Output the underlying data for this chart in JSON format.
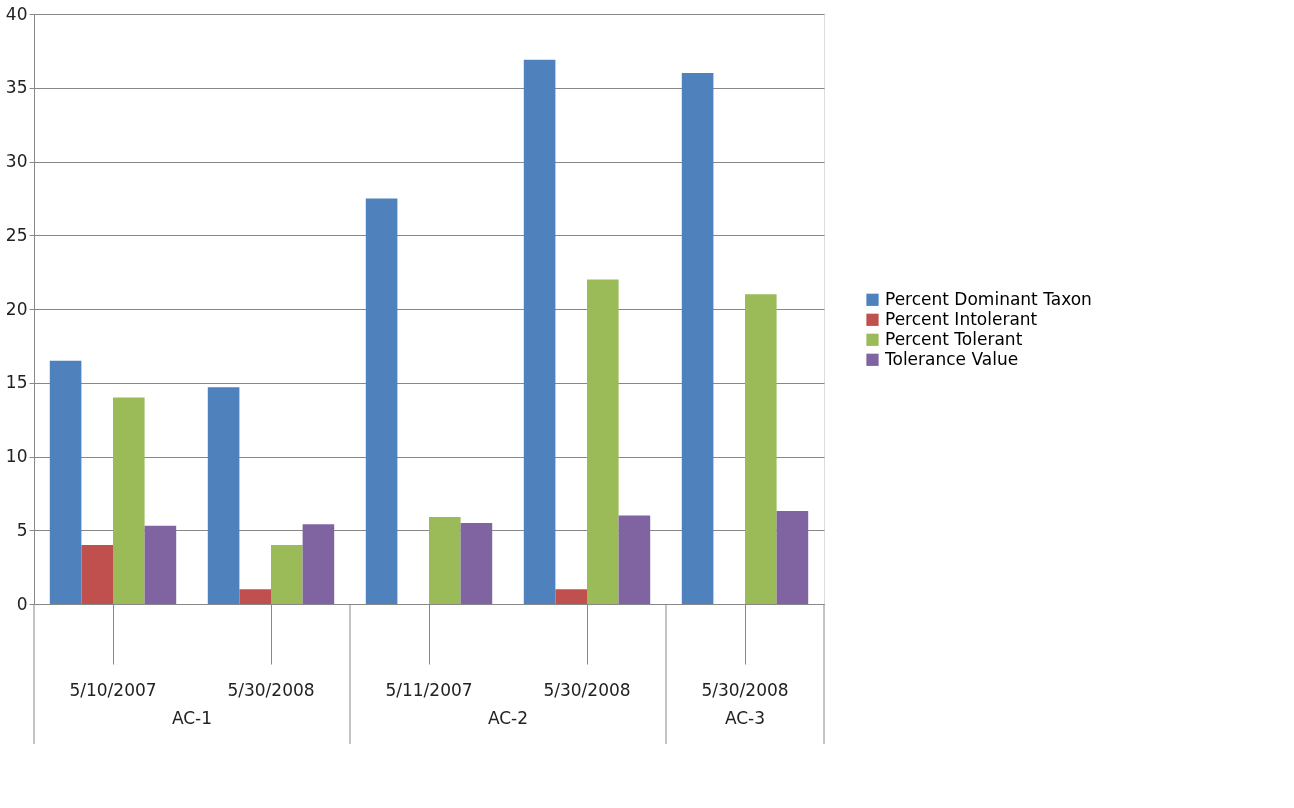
{
  "chart_data": {
    "type": "bar",
    "categories": [
      "5/10/2007",
      "5/30/2008",
      "5/11/2007",
      "5/30/2008",
      "5/30/2008"
    ],
    "series": [
      {
        "name": "Percent Dominant Taxon",
        "color": "#4f81bd",
        "values": [
          16.5,
          14.7,
          27.5,
          36.9,
          36.0
        ]
      },
      {
        "name": "Percent Intolerant",
        "color": "#c0504d",
        "values": [
          4,
          1,
          null,
          1,
          null
        ]
      },
      {
        "name": "Percent Tolerant",
        "color": "#9bbb59",
        "values": [
          14,
          4,
          5.9,
          22,
          21
        ]
      },
      {
        "name": "Tolerance Value",
        "color": "#8064a2",
        "values": [
          5.3,
          5.4,
          5.5,
          6.0,
          6.3
        ]
      }
    ],
    "annotations": [
      "AC-1",
      "AC-2",
      "AC-3"
    ],
    "ylim": [
      0,
      40
    ],
    "yticks": [
      0,
      5,
      10,
      15,
      20,
      25,
      30,
      35,
      40
    ],
    "grid": "y",
    "legend": "right"
  }
}
